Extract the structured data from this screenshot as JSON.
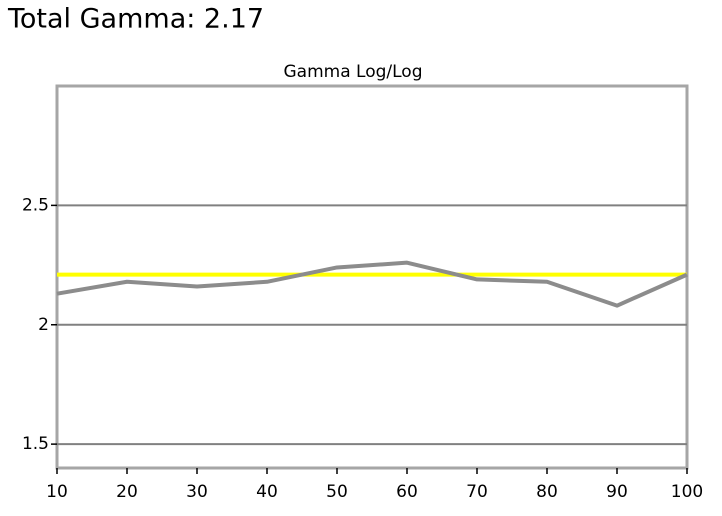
{
  "header": {
    "title": "Total Gamma: 2.17"
  },
  "chart_data": {
    "type": "line",
    "title": "Gamma Log/Log",
    "x": [
      10,
      20,
      30,
      40,
      50,
      60,
      70,
      80,
      90,
      100
    ],
    "series": [
      {
        "color": "#8c8c8c",
        "values": [
          2.13,
          2.18,
          2.16,
          2.18,
          2.24,
          2.26,
          2.19,
          2.18,
          2.08,
          2.21
        ]
      },
      {
        "color": "#ffff00",
        "values": [
          2.21,
          2.21,
          2.21,
          2.21,
          2.21,
          2.21,
          2.21,
          2.21,
          2.21,
          2.21
        ]
      }
    ],
    "xlim": [
      10,
      100
    ],
    "xticks": [
      10,
      20,
      30,
      40,
      50,
      60,
      70,
      80,
      90,
      100
    ],
    "ylim": [
      1.4,
      3.0
    ],
    "yticks": [
      1.5,
      2,
      2.5
    ],
    "grid": true
  }
}
